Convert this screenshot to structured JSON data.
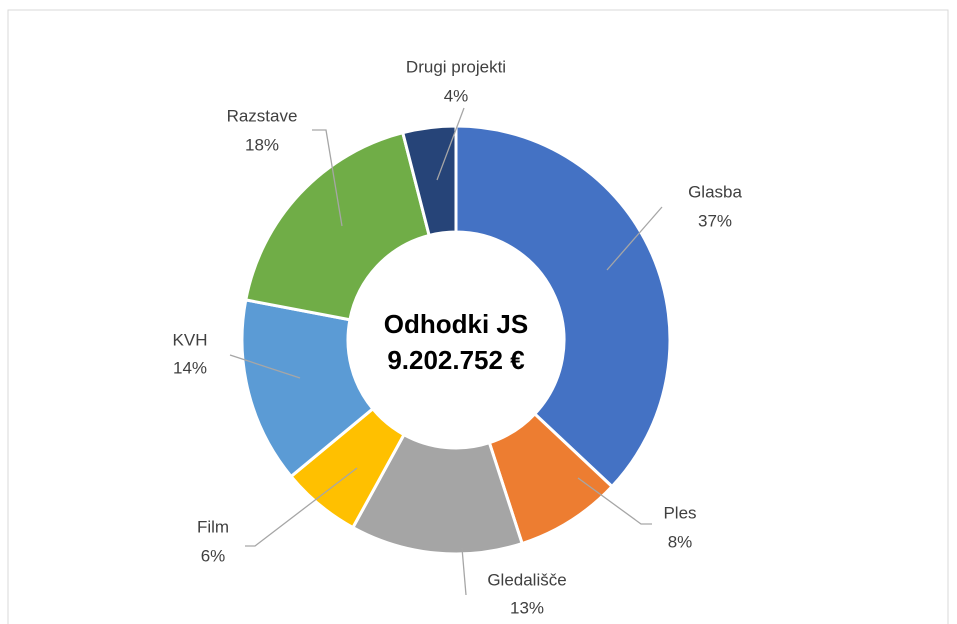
{
  "chart_data": {
    "type": "donut",
    "center_labels": [
      "Odhodki JS",
      "9.202.752 €"
    ],
    "categories": [
      "Glasba",
      "Ples",
      "Gledališče",
      "Film",
      "KVH",
      "Razstave",
      "Drugi projekti"
    ],
    "values": [
      37,
      8,
      13,
      6,
      14,
      18,
      4
    ],
    "value_labels": [
      "37%",
      "8%",
      "13%",
      "6%",
      "14%",
      "18%",
      "4%"
    ],
    "colors": [
      "#4472c4",
      "#ed7d31",
      "#a5a5a5",
      "#ffc000",
      "#5b9bd5",
      "#70ad47",
      "#264478"
    ]
  }
}
